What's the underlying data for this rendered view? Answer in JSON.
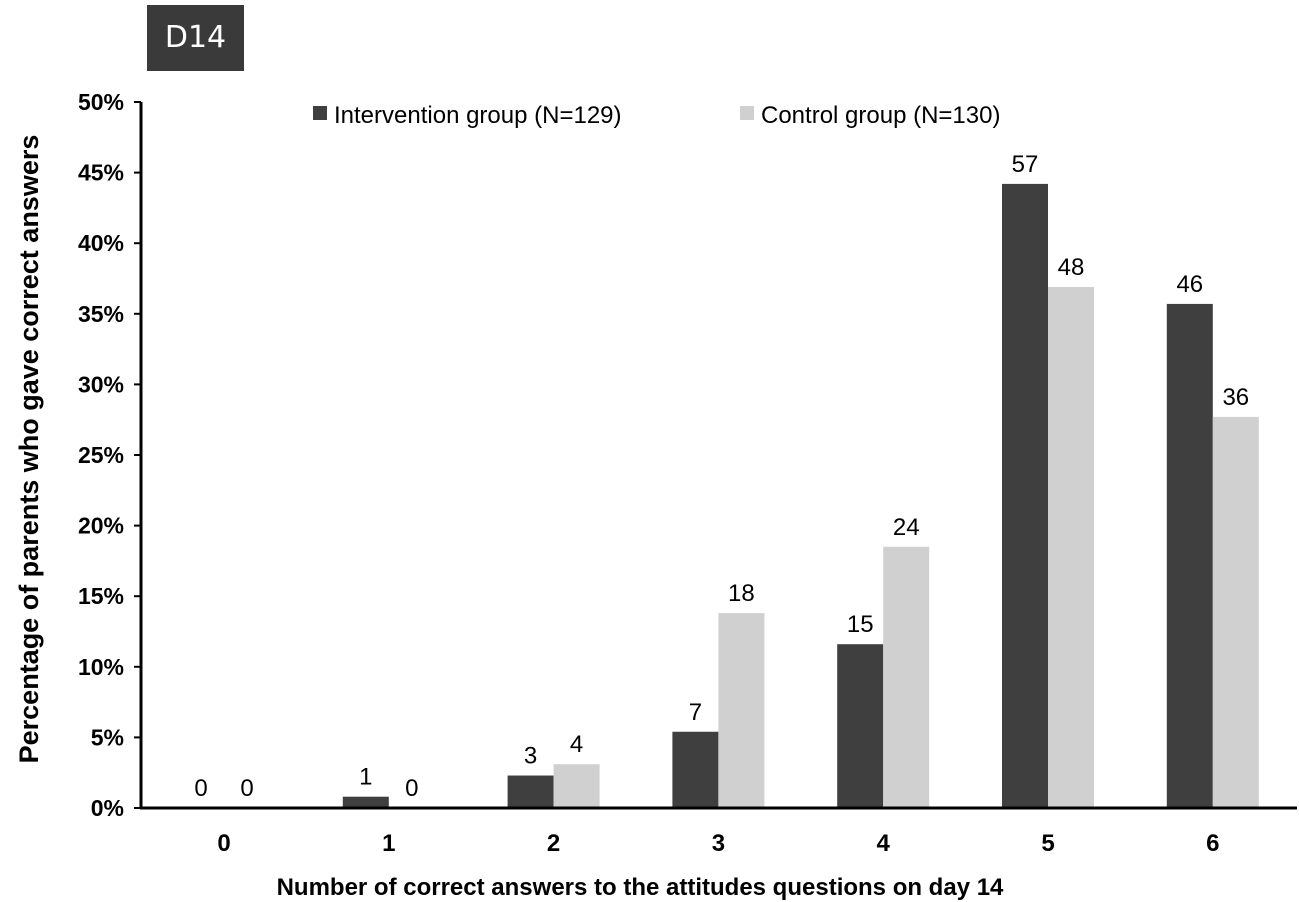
{
  "panel_label": "D14",
  "chart_data": {
    "type": "bar",
    "xlabel": "Number of correct answers to the attitudes questions on day 14",
    "ylabel": "Percentage of parents who gave correct answers",
    "ylim": [
      0,
      50
    ],
    "yticks": [
      "0%",
      "5%",
      "10%",
      "15%",
      "20%",
      "25%",
      "30%",
      "35%",
      "40%",
      "45%",
      "50%"
    ],
    "grid": false,
    "legend_position": "top",
    "categories": [
      "0",
      "1",
      "2",
      "3",
      "4",
      "5",
      "6"
    ],
    "series": [
      {
        "name": "Intervention group (N=129)",
        "color": "#3f3f3f",
        "values": [
          0,
          0.8,
          2.3,
          5.4,
          11.6,
          44.2,
          35.7
        ],
        "labels": [
          "0",
          "1",
          "3",
          "7",
          "15",
          "57",
          "46"
        ]
      },
      {
        "name": "Control group (N=130)",
        "color": "#d0d0d0",
        "values": [
          0,
          0,
          3.1,
          13.8,
          18.5,
          36.9,
          27.7
        ],
        "labels": [
          "0",
          "0",
          "4",
          "18",
          "24",
          "48",
          "36"
        ]
      }
    ]
  }
}
